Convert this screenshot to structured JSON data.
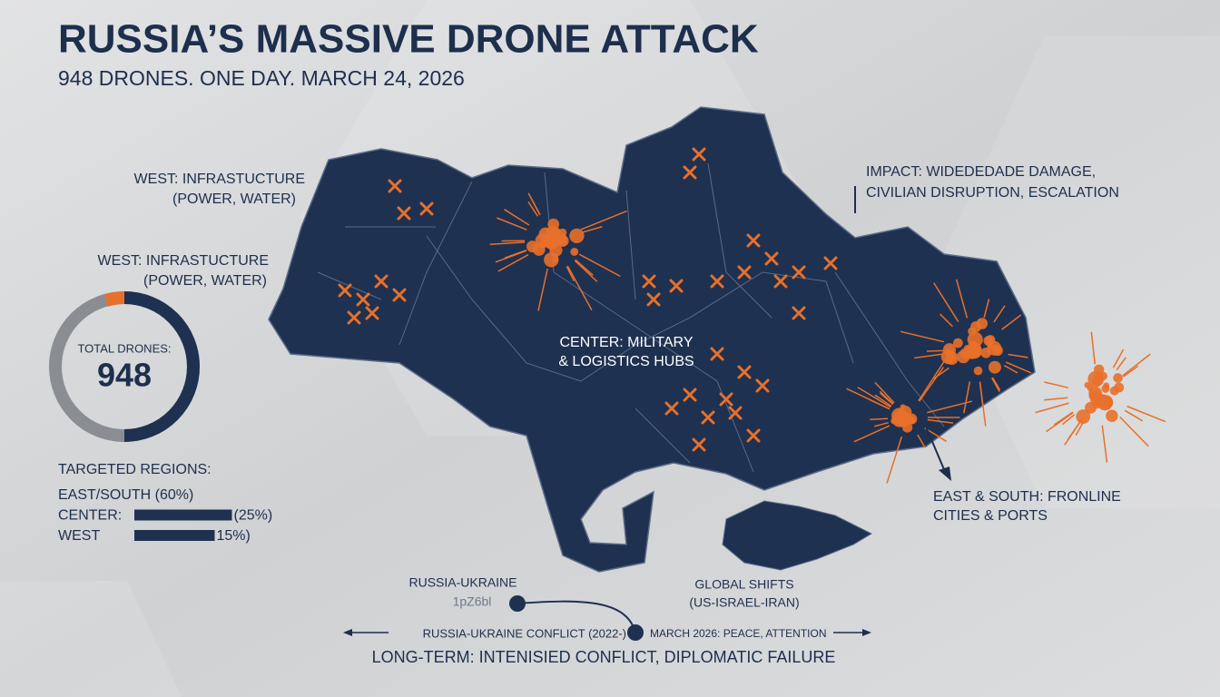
{
  "header": {
    "title": "RUSSIA’S MASSIVE DRONE ATTACK",
    "subtitle": "948 DRONES. ONE DAY. MARCH 24, 2026"
  },
  "callouts": {
    "west_1": [
      "WEST: INFRASTUCTURE",
      "(POWER, WATER)"
    ],
    "west_2": [
      "WEST: INFRASTUCTURE",
      "(POWER, WATER)"
    ],
    "impact": [
      "IMPACT: WIDEDEDADE DAMAGE,",
      "CIVILIAN DISRUPTION, ESCALATION"
    ],
    "center": [
      "CENTER: MILITARY",
      "& LOGISTICS HUBS"
    ],
    "east_south": [
      "EAST & SOUTH: FRONLINE",
      "CITIES & PORTS"
    ]
  },
  "total": {
    "label": "TOTAL DRONES:",
    "value": 948
  },
  "regions": {
    "title": "TARGETED REGIONS:",
    "items": [
      {
        "label": "EAST/SOUTH (60%)"
      },
      {
        "label": "CENTER:",
        "value": 25,
        "value_label": "(25%)"
      },
      {
        "label": "WEST",
        "value": 15,
        "value_label": "15%)"
      }
    ]
  },
  "timeline": {
    "left": [
      "RUSSIA-UKRAINE",
      "1pZ6bl"
    ],
    "right": [
      "GLOBAL SHIFTS",
      "(US-ISRAEL-IRAN)"
    ],
    "axis_left": "RUSSIA-UKRAINE CONFLICT (2022-)",
    "axis_right": "MARCH 2026: PEACE, ATTENTION",
    "footer": "LONG-TERM: INTENISIED CONFLICT, DIPLOMATIC FAILURE"
  }
}
